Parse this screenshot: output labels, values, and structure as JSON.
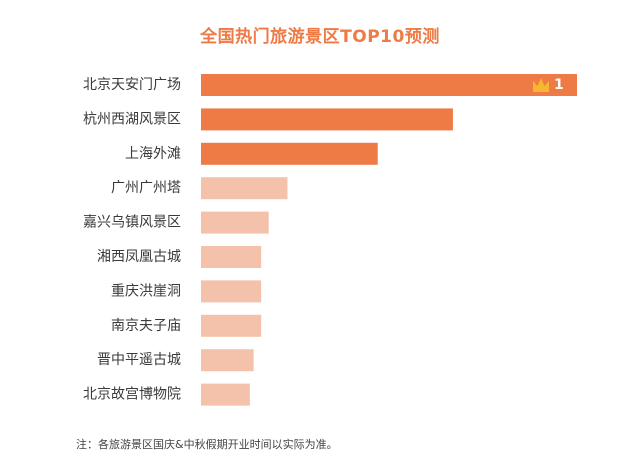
{
  "chart_data": {
    "type": "bar",
    "orientation": "horizontal",
    "title": "全国热门旅游景区TOP10预测",
    "categories": [
      "北京天安门广场",
      "杭州西湖风景区",
      "上海外滩",
      "广州广州塔",
      "嘉兴乌镇风景区",
      "湘西凤凰古城",
      "重庆洪崖洞",
      "南京夫子庙",
      "晋中平遥古城",
      "北京故宫博物院"
    ],
    "values": [
      100,
      67,
      47,
      23,
      18,
      16,
      16,
      16,
      14,
      13
    ],
    "value_scale": "relative, unlabeled",
    "top_rank_badge": {
      "icon": "crown-icon",
      "label": "1"
    },
    "colors": {
      "top3": "#ee7b45",
      "rest": "#f4c2aa",
      "crown": "#f7b62f"
    },
    "xlabel": "",
    "ylabel": "",
    "grid": false,
    "legend": "none"
  },
  "footnote": "注：各旅游景区国庆&中秋假期开业时间以实际为准。"
}
